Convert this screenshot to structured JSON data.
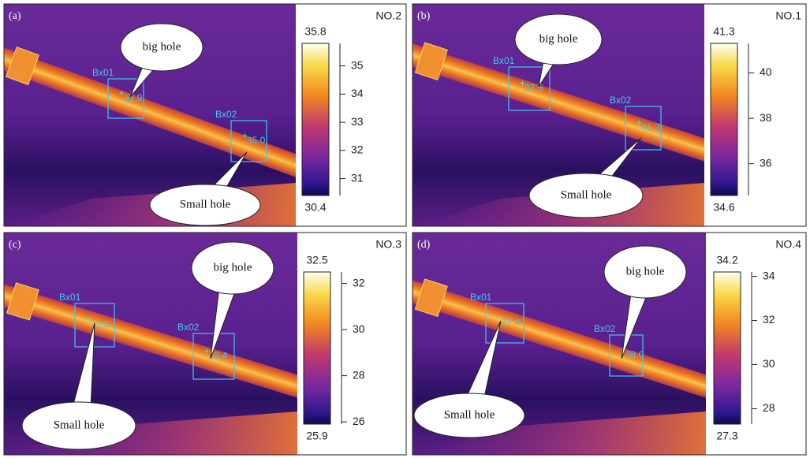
{
  "panels": [
    {
      "label": "(a)",
      "number": "NO.2",
      "scale": {
        "max": 35.8,
        "min": 30.4,
        "ticks": [
          35,
          34,
          33,
          32,
          31
        ]
      },
      "callouts": [
        {
          "text": "big hole"
        },
        {
          "text": "Small hole"
        }
      ],
      "boxes": [
        {
          "name": "Bx01",
          "value": "35.9"
        },
        {
          "name": "Bx02",
          "value": "35.0"
        }
      ]
    },
    {
      "label": "(b)",
      "number": "NO.1",
      "scale": {
        "max": 41.3,
        "min": 34.6,
        "ticks": [
          40,
          38,
          36
        ]
      },
      "callouts": [
        {
          "text": "big hole"
        },
        {
          "text": "Small hole"
        }
      ],
      "boxes": [
        {
          "name": "Bx01",
          "value": "37.5"
        },
        {
          "name": "Bx02",
          "value": "41.2"
        }
      ]
    },
    {
      "label": "(c)",
      "number": "NO.3",
      "scale": {
        "max": 32.5,
        "min": 25.9,
        "ticks": [
          32,
          30,
          28,
          26
        ]
      },
      "callouts": [
        {
          "text": "big hole"
        },
        {
          "text": "Small hole"
        }
      ],
      "boxes": [
        {
          "name": "Bx01",
          "value": "32.5"
        },
        {
          "name": "Bx02",
          "value": "33.4"
        }
      ]
    },
    {
      "label": "(d)",
      "number": "NO.4",
      "scale": {
        "max": 34.2,
        "min": 27.3,
        "ticks": [
          34,
          32,
          30,
          28
        ]
      },
      "callouts": [
        {
          "text": "big hole"
        },
        {
          "text": "Small hole"
        }
      ],
      "boxes": [
        {
          "name": "Bx01",
          "value": "37.4"
        },
        {
          "name": "Bx02",
          "value": "38.0"
        }
      ]
    }
  ]
}
